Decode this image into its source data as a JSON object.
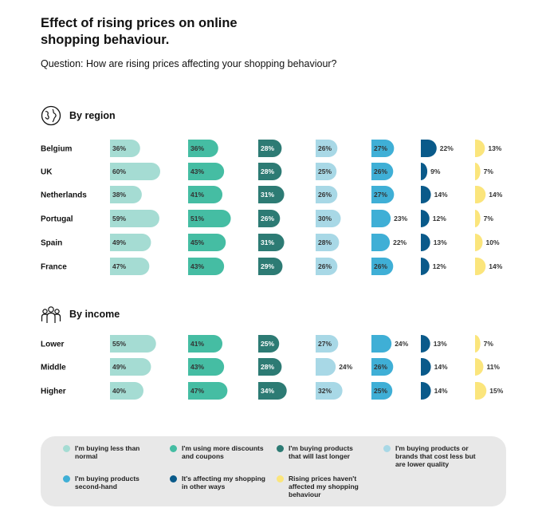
{
  "header": {
    "title": "Effect of rising prices on online shopping behaviour.",
    "question": "Question: How are rising prices affecting your shopping behaviour?"
  },
  "sections": {
    "region": {
      "label": "By region",
      "icon": "globe-icon"
    },
    "income": {
      "label": "By income",
      "icon": "people-group-icon"
    }
  },
  "chart_data": {
    "type": "bar",
    "series": [
      {
        "name": "I'm buying less than normal",
        "color": "#a5dcd3",
        "text_color": "#333333"
      },
      {
        "name": "I'm using more discounts and coupons",
        "color": "#45bda3",
        "text_color": "#333333"
      },
      {
        "name": "I'm buying products that will last longer",
        "color": "#2d7b74",
        "text_color": "#ffffff"
      },
      {
        "name": "I'm buying products or brands that cost less but are lower quality",
        "color": "#a8d8e6",
        "text_color": "#333333"
      },
      {
        "name": "I'm buying products second-hand",
        "color": "#3fafd6",
        "text_color": "#333333"
      },
      {
        "name": "It's affecting my shopping in other ways",
        "color": "#0a5a8a",
        "text_color": "#333333"
      },
      {
        "name": "Rising prices haven't affected my shopping behaviour",
        "color": "#fbe57c",
        "text_color": "#333333"
      }
    ],
    "groups": [
      {
        "label": "By region",
        "categories": [
          "Belgium",
          "UK",
          "Netherlands",
          "Portugal",
          "Spain",
          "France"
        ],
        "values": [
          [
            36,
            36,
            28,
            26,
            27,
            22,
            13
          ],
          [
            60,
            43,
            28,
            25,
            26,
            9,
            7
          ],
          [
            38,
            41,
            31,
            26,
            27,
            14,
            14
          ],
          [
            59,
            51,
            26,
            30,
            23,
            12,
            7
          ],
          [
            49,
            45,
            31,
            28,
            22,
            13,
            10
          ],
          [
            47,
            43,
            29,
            26,
            26,
            12,
            14
          ]
        ]
      },
      {
        "label": "By income",
        "categories": [
          "Lower",
          "Middle",
          "Higher"
        ],
        "values": [
          [
            55,
            41,
            25,
            27,
            24,
            13,
            7
          ],
          [
            49,
            43,
            28,
            24,
            26,
            14,
            11
          ],
          [
            40,
            47,
            34,
            32,
            25,
            14,
            15
          ]
        ]
      }
    ]
  },
  "legend": {
    "items": [
      "I'm buying less than normal",
      "I'm using more discounts and coupons",
      "I'm buying products that will last longer",
      "I'm buying products or brands that cost less but are lower quality",
      "I'm buying products second-hand",
      "It's affecting my shopping in other ways",
      "Rising prices haven't affected my shopping behaviour"
    ]
  }
}
